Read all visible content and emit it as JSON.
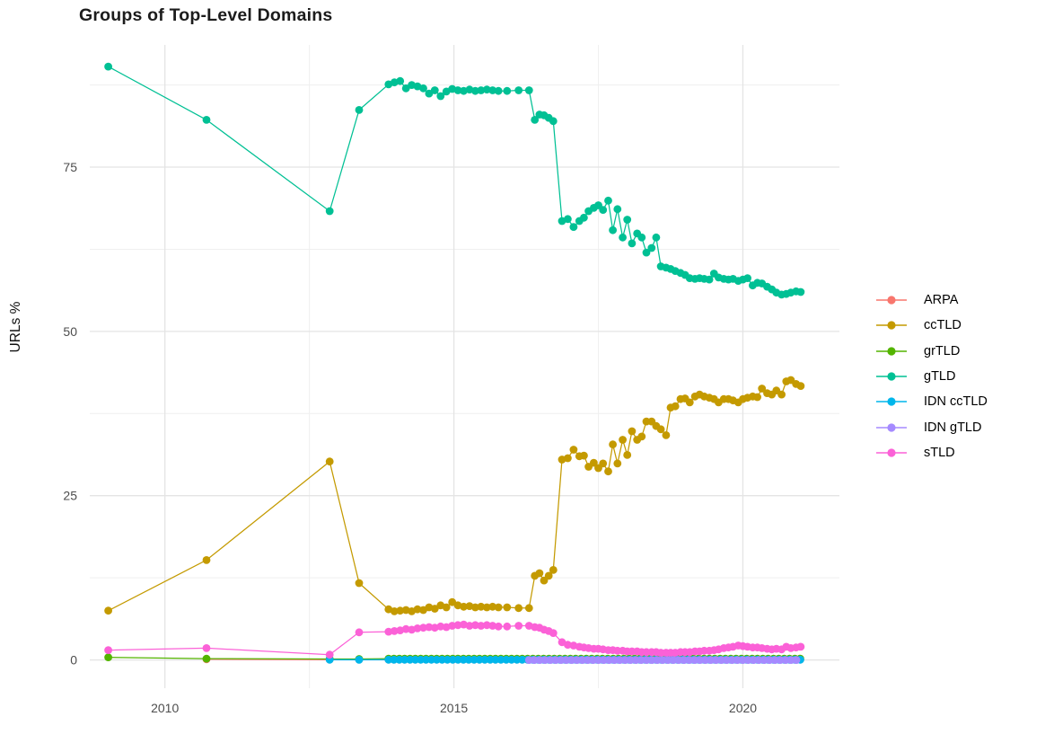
{
  "chart_data": {
    "type": "line",
    "title": "Groups of Top-Level Domains",
    "xlabel": "",
    "ylabel": "URLs %",
    "x_ticks": [
      2010,
      2015,
      2020
    ],
    "x_minor_ticks": [
      2012.5,
      2017.5
    ],
    "y_ticks": [
      0,
      25,
      50,
      75
    ],
    "y_minor_ticks": [
      12.5,
      37.5,
      62.5,
      87.5
    ],
    "x_range": [
      2008.7,
      2021.67
    ],
    "y_range": [
      -4.3,
      93.6
    ],
    "grid": true,
    "legend_position": "right",
    "marker": "circle",
    "series": [
      {
        "name": "ARPA",
        "color": "#F8766D",
        "points": [
          [
            2010.72,
            0.1
          ],
          [
            2012.85,
            0.05
          ],
          [
            2013.36,
            0.05
          ]
        ],
        "runs": [
          {
            "from": 2013.87,
            "to": 2021.0,
            "step": 0.0925,
            "value": 0.05
          }
        ]
      },
      {
        "name": "ccTLD",
        "color": "#C49A00",
        "points": [
          [
            2009.02,
            7.5
          ],
          [
            2010.72,
            15.2
          ],
          [
            2012.85,
            30.2
          ],
          [
            2013.36,
            11.7
          ],
          [
            2013.87,
            7.7
          ],
          [
            2013.97,
            7.4
          ],
          [
            2014.07,
            7.5
          ],
          [
            2014.17,
            7.6
          ],
          [
            2014.27,
            7.4
          ],
          [
            2014.37,
            7.7
          ],
          [
            2014.47,
            7.6
          ],
          [
            2014.57,
            8.0
          ],
          [
            2014.67,
            7.8
          ],
          [
            2014.77,
            8.3
          ],
          [
            2014.87,
            8.0
          ],
          [
            2014.97,
            8.8
          ],
          [
            2015.07,
            8.3
          ],
          [
            2015.17,
            8.1
          ],
          [
            2015.27,
            8.2
          ],
          [
            2015.37,
            8.0
          ],
          [
            2015.47,
            8.1
          ],
          [
            2015.57,
            8.0
          ],
          [
            2015.67,
            8.1
          ],
          [
            2015.77,
            8.0
          ],
          [
            2015.92,
            8.0
          ],
          [
            2016.12,
            7.9
          ],
          [
            2016.3,
            7.9
          ],
          [
            2016.4,
            12.8
          ],
          [
            2016.48,
            13.2
          ],
          [
            2016.56,
            12.1
          ],
          [
            2016.64,
            12.8
          ],
          [
            2016.72,
            13.7
          ],
          [
            2016.87,
            30.5
          ],
          [
            2016.97,
            30.7
          ],
          [
            2017.07,
            32.0
          ],
          [
            2017.17,
            31.0
          ],
          [
            2017.25,
            31.1
          ],
          [
            2017.33,
            29.4
          ],
          [
            2017.42,
            30.0
          ],
          [
            2017.5,
            29.2
          ],
          [
            2017.58,
            29.9
          ],
          [
            2017.67,
            28.7
          ],
          [
            2017.75,
            32.8
          ],
          [
            2017.83,
            29.9
          ],
          [
            2017.92,
            33.5
          ],
          [
            2018.0,
            31.2
          ],
          [
            2018.08,
            34.8
          ],
          [
            2018.17,
            33.5
          ],
          [
            2018.25,
            34.0
          ],
          [
            2018.33,
            36.3
          ],
          [
            2018.42,
            36.3
          ],
          [
            2018.5,
            35.6
          ],
          [
            2018.58,
            35.1
          ],
          [
            2018.67,
            34.2
          ],
          [
            2018.75,
            38.4
          ],
          [
            2018.83,
            38.6
          ],
          [
            2018.92,
            39.7
          ],
          [
            2019.0,
            39.8
          ],
          [
            2019.08,
            39.2
          ],
          [
            2019.17,
            40.1
          ],
          [
            2019.25,
            40.4
          ],
          [
            2019.33,
            40.1
          ],
          [
            2019.42,
            39.9
          ],
          [
            2019.5,
            39.7
          ],
          [
            2019.58,
            39.2
          ],
          [
            2019.67,
            39.7
          ],
          [
            2019.75,
            39.7
          ],
          [
            2019.83,
            39.5
          ],
          [
            2019.92,
            39.2
          ],
          [
            2020.0,
            39.7
          ],
          [
            2020.08,
            39.9
          ],
          [
            2020.17,
            40.1
          ],
          [
            2020.25,
            40.0
          ],
          [
            2020.33,
            41.3
          ],
          [
            2020.42,
            40.6
          ],
          [
            2020.5,
            40.4
          ],
          [
            2020.58,
            41.0
          ],
          [
            2020.67,
            40.4
          ],
          [
            2020.75,
            42.4
          ],
          [
            2020.83,
            42.6
          ],
          [
            2020.92,
            42.0
          ],
          [
            2021.0,
            41.7
          ]
        ]
      },
      {
        "name": "grTLD",
        "color": "#53B400",
        "points": [
          [
            2009.02,
            0.4
          ],
          [
            2010.72,
            0.2
          ],
          [
            2012.85,
            0.15
          ],
          [
            2013.36,
            0.15
          ]
        ],
        "runs": [
          {
            "from": 2013.87,
            "to": 2021.0,
            "step": 0.0925,
            "value": 0.2
          }
        ]
      },
      {
        "name": "gTLD",
        "color": "#00C094",
        "points": [
          [
            2009.02,
            90.3
          ],
          [
            2010.72,
            82.2
          ],
          [
            2012.85,
            68.3
          ],
          [
            2013.36,
            83.7
          ],
          [
            2013.87,
            87.6
          ],
          [
            2013.97,
            87.9
          ],
          [
            2014.07,
            88.1
          ],
          [
            2014.17,
            87.0
          ],
          [
            2014.27,
            87.5
          ],
          [
            2014.37,
            87.3
          ],
          [
            2014.47,
            87.0
          ],
          [
            2014.57,
            86.2
          ],
          [
            2014.67,
            86.7
          ],
          [
            2014.77,
            85.8
          ],
          [
            2014.87,
            86.5
          ],
          [
            2014.97,
            86.9
          ],
          [
            2015.07,
            86.7
          ],
          [
            2015.17,
            86.6
          ],
          [
            2015.27,
            86.8
          ],
          [
            2015.37,
            86.6
          ],
          [
            2015.47,
            86.7
          ],
          [
            2015.57,
            86.8
          ],
          [
            2015.67,
            86.7
          ],
          [
            2015.77,
            86.6
          ],
          [
            2015.92,
            86.6
          ],
          [
            2016.12,
            86.7
          ],
          [
            2016.3,
            86.7
          ],
          [
            2016.4,
            82.2
          ],
          [
            2016.48,
            83.0
          ],
          [
            2016.56,
            82.9
          ],
          [
            2016.64,
            82.5
          ],
          [
            2016.72,
            82.0
          ],
          [
            2016.87,
            66.8
          ],
          [
            2016.97,
            67.1
          ],
          [
            2017.07,
            65.9
          ],
          [
            2017.17,
            66.8
          ],
          [
            2017.25,
            67.3
          ],
          [
            2017.33,
            68.3
          ],
          [
            2017.42,
            68.8
          ],
          [
            2017.5,
            69.2
          ],
          [
            2017.58,
            68.5
          ],
          [
            2017.67,
            69.9
          ],
          [
            2017.75,
            65.4
          ],
          [
            2017.83,
            68.6
          ],
          [
            2017.92,
            64.3
          ],
          [
            2018.0,
            67.0
          ],
          [
            2018.08,
            63.4
          ],
          [
            2018.17,
            64.9
          ],
          [
            2018.25,
            64.3
          ],
          [
            2018.33,
            62.0
          ],
          [
            2018.42,
            62.7
          ],
          [
            2018.5,
            64.3
          ],
          [
            2018.58,
            59.9
          ],
          [
            2018.67,
            59.7
          ],
          [
            2018.75,
            59.5
          ],
          [
            2018.83,
            59.2
          ],
          [
            2018.92,
            58.9
          ],
          [
            2019.0,
            58.6
          ],
          [
            2019.08,
            58.1
          ],
          [
            2019.17,
            58.0
          ],
          [
            2019.25,
            58.1
          ],
          [
            2019.33,
            58.0
          ],
          [
            2019.42,
            57.9
          ],
          [
            2019.5,
            58.8
          ],
          [
            2019.58,
            58.2
          ],
          [
            2019.67,
            58.0
          ],
          [
            2019.75,
            57.9
          ],
          [
            2019.83,
            58.0
          ],
          [
            2019.92,
            57.7
          ],
          [
            2020.0,
            57.9
          ],
          [
            2020.08,
            58.1
          ],
          [
            2020.17,
            57.0
          ],
          [
            2020.25,
            57.4
          ],
          [
            2020.33,
            57.3
          ],
          [
            2020.42,
            56.8
          ],
          [
            2020.5,
            56.4
          ],
          [
            2020.58,
            55.9
          ],
          [
            2020.67,
            55.6
          ],
          [
            2020.75,
            55.7
          ],
          [
            2020.83,
            55.9
          ],
          [
            2020.92,
            56.1
          ],
          [
            2021.0,
            56.0
          ]
        ]
      },
      {
        "name": "IDN ccTLD",
        "color": "#00B6EB",
        "points": [
          [
            2012.85,
            0.03
          ],
          [
            2013.36,
            0.02
          ]
        ],
        "runs": [
          {
            "from": 2013.87,
            "to": 2021.0,
            "step": 0.0925,
            "value": 0.03
          }
        ]
      },
      {
        "name": "IDN gTLD",
        "color": "#A58AFF",
        "points": [],
        "runs": [
          {
            "from": 2016.3,
            "to": 2021.0,
            "step": 0.0925,
            "value": 0.0
          }
        ]
      },
      {
        "name": "sTLD",
        "color": "#FB61D7",
        "points": [
          [
            2009.02,
            1.5
          ],
          [
            2010.72,
            1.8
          ],
          [
            2012.85,
            0.8
          ],
          [
            2013.36,
            4.2
          ],
          [
            2013.87,
            4.3
          ],
          [
            2013.97,
            4.4
          ],
          [
            2014.07,
            4.5
          ],
          [
            2014.17,
            4.7
          ],
          [
            2014.27,
            4.6
          ],
          [
            2014.37,
            4.8
          ],
          [
            2014.47,
            4.9
          ],
          [
            2014.57,
            5.0
          ],
          [
            2014.67,
            4.9
          ],
          [
            2014.77,
            5.1
          ],
          [
            2014.87,
            5.0
          ],
          [
            2014.97,
            5.2
          ],
          [
            2015.07,
            5.3
          ],
          [
            2015.17,
            5.4
          ],
          [
            2015.27,
            5.2
          ],
          [
            2015.37,
            5.3
          ],
          [
            2015.47,
            5.2
          ],
          [
            2015.57,
            5.3
          ],
          [
            2015.67,
            5.2
          ],
          [
            2015.77,
            5.1
          ],
          [
            2015.92,
            5.1
          ],
          [
            2016.12,
            5.2
          ],
          [
            2016.3,
            5.2
          ],
          [
            2016.4,
            5.0
          ],
          [
            2016.48,
            4.9
          ],
          [
            2016.56,
            4.6
          ],
          [
            2016.64,
            4.4
          ],
          [
            2016.72,
            4.1
          ],
          [
            2016.87,
            2.7
          ],
          [
            2016.97,
            2.3
          ],
          [
            2017.07,
            2.2
          ],
          [
            2017.17,
            2.0
          ],
          [
            2017.25,
            1.9
          ],
          [
            2017.33,
            1.8
          ],
          [
            2017.42,
            1.7
          ],
          [
            2017.5,
            1.7
          ],
          [
            2017.58,
            1.6
          ],
          [
            2017.67,
            1.5
          ],
          [
            2017.75,
            1.5
          ],
          [
            2017.83,
            1.4
          ],
          [
            2017.92,
            1.4
          ],
          [
            2018.0,
            1.3
          ],
          [
            2018.08,
            1.3
          ],
          [
            2018.17,
            1.3
          ],
          [
            2018.25,
            1.2
          ],
          [
            2018.33,
            1.2
          ],
          [
            2018.42,
            1.2
          ],
          [
            2018.5,
            1.2
          ],
          [
            2018.58,
            1.1
          ],
          [
            2018.67,
            1.1
          ],
          [
            2018.75,
            1.1
          ],
          [
            2018.83,
            1.1
          ],
          [
            2018.92,
            1.2
          ],
          [
            2019.0,
            1.2
          ],
          [
            2019.08,
            1.2
          ],
          [
            2019.17,
            1.3
          ],
          [
            2019.25,
            1.3
          ],
          [
            2019.33,
            1.4
          ],
          [
            2019.42,
            1.4
          ],
          [
            2019.5,
            1.5
          ],
          [
            2019.58,
            1.6
          ],
          [
            2019.67,
            1.8
          ],
          [
            2019.75,
            1.9
          ],
          [
            2019.83,
            2.0
          ],
          [
            2019.92,
            2.2
          ],
          [
            2020.0,
            2.1
          ],
          [
            2020.08,
            2.0
          ],
          [
            2020.17,
            1.9
          ],
          [
            2020.25,
            1.9
          ],
          [
            2020.33,
            1.8
          ],
          [
            2020.42,
            1.7
          ],
          [
            2020.5,
            1.6
          ],
          [
            2020.58,
            1.7
          ],
          [
            2020.67,
            1.6
          ],
          [
            2020.75,
            2.0
          ],
          [
            2020.83,
            1.8
          ],
          [
            2020.92,
            1.9
          ],
          [
            2021.0,
            2.0
          ]
        ]
      }
    ],
    "colors": {
      "grid_major": "#E4E4E4",
      "grid_minor": "#EFEFEF",
      "tick_label": "#4d4d4d",
      "title_text": "#1c1c1c"
    }
  }
}
